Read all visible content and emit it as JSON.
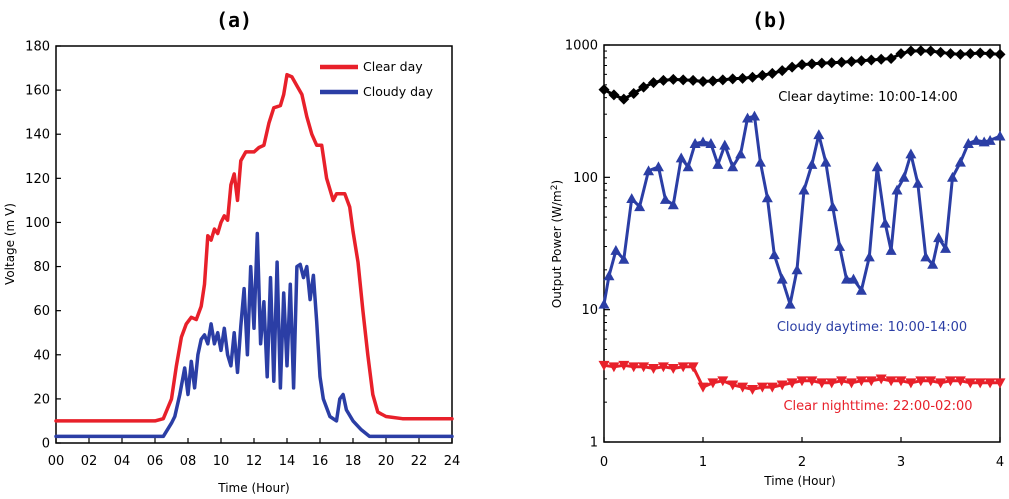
{
  "chart_data": [
    {
      "panel_label": "(a)",
      "type": "line",
      "xlabel": "Time (Hour)",
      "ylabel": "Voltage (m V)",
      "xlim": [
        0,
        24
      ],
      "ylim": [
        0,
        180
      ],
      "x_ticks": [
        0,
        2,
        4,
        6,
        8,
        10,
        12,
        14,
        16,
        18,
        20,
        22,
        24
      ],
      "x_tick_labels": [
        "00",
        "02",
        "04",
        "06",
        "08",
        "10",
        "12",
        "14",
        "16",
        "18",
        "20",
        "22",
        "24"
      ],
      "y_ticks": [
        0,
        20,
        40,
        60,
        80,
        100,
        120,
        140,
        160,
        180
      ],
      "y_tick_labels": [
        "0",
        "20",
        "40",
        "60",
        "80",
        "100",
        "120",
        "140",
        "160",
        "180"
      ],
      "legend_position": "top-right",
      "series": [
        {
          "name": "Clear day",
          "color": "#e8202a",
          "x": [
            0,
            1,
            2,
            3,
            4,
            5,
            6,
            6.5,
            7,
            7.3,
            7.6,
            7.9,
            8.2,
            8.5,
            8.8,
            9,
            9.2,
            9.4,
            9.6,
            9.8,
            10,
            10.2,
            10.4,
            10.6,
            10.8,
            11,
            11.2,
            11.5,
            12,
            12.3,
            12.6,
            12.9,
            13.2,
            13.6,
            13.8,
            14,
            14.3,
            14.6,
            14.9,
            15.2,
            15.5,
            15.8,
            16.1,
            16.4,
            16.8,
            17,
            17.5,
            17.8,
            18,
            18.3,
            18.6,
            18.9,
            19.2,
            19.5,
            20,
            21,
            22,
            23,
            24
          ],
          "y": [
            10,
            10,
            10,
            10,
            10,
            10,
            10,
            11,
            20,
            35,
            48,
            54,
            57,
            56,
            62,
            72,
            94,
            92,
            97,
            95,
            100,
            103,
            101,
            117,
            122,
            110,
            128,
            132,
            132,
            134,
            135,
            145,
            152,
            153,
            158,
            167,
            166,
            162,
            158,
            148,
            140,
            135,
            135,
            120,
            110,
            113,
            113,
            107,
            96,
            82,
            60,
            40,
            22,
            14,
            12,
            11,
            11,
            11,
            11
          ]
        },
        {
          "name": "Cloudy day",
          "color": "#2b3ea5",
          "x": [
            0,
            1,
            2,
            3,
            4,
            5,
            6,
            6.5,
            7,
            7.2,
            7.5,
            7.8,
            8,
            8.2,
            8.4,
            8.6,
            8.8,
            9,
            9.2,
            9.4,
            9.6,
            9.8,
            10,
            10.2,
            10.4,
            10.6,
            10.8,
            11,
            11.2,
            11.4,
            11.6,
            11.8,
            12,
            12.2,
            12.4,
            12.6,
            12.8,
            13,
            13.2,
            13.4,
            13.6,
            13.8,
            14,
            14.2,
            14.4,
            14.6,
            14.8,
            15,
            15.2,
            15.4,
            15.6,
            15.8,
            16,
            16.2,
            16.6,
            17,
            17.2,
            17.4,
            17.6,
            18,
            18.5,
            19,
            19.5,
            20,
            21,
            22,
            23,
            24
          ],
          "y": [
            3,
            3,
            3,
            3,
            3,
            3,
            3,
            3,
            9,
            12,
            22,
            34,
            22,
            37,
            25,
            40,
            47,
            49,
            45,
            54,
            45,
            50,
            42,
            52,
            40,
            35,
            50,
            32,
            53,
            70,
            40,
            80,
            52,
            95,
            45,
            64,
            30,
            75,
            28,
            82,
            25,
            68,
            35,
            72,
            25,
            80,
            81,
            75,
            80,
            65,
            76,
            55,
            30,
            20,
            12,
            10,
            20,
            22,
            15,
            10,
            6,
            3,
            3,
            3,
            3,
            3,
            3,
            3
          ]
        }
      ]
    },
    {
      "panel_label": "(b)",
      "type": "line",
      "xlabel": "Time (Hour)",
      "ylabel": "Output Power (W/m",
      "ylabel_superscript": "2",
      "ylabel_suffix": ")",
      "yscale": "log",
      "xlim": [
        0,
        4
      ],
      "ylim": [
        1,
        1000
      ],
      "x_ticks": [
        0,
        1,
        2,
        3,
        4
      ],
      "x_tick_labels": [
        "0",
        "1",
        "2",
        "3",
        "4"
      ],
      "y_ticks": [
        1,
        10,
        100,
        1000
      ],
      "y_tick_labels": [
        "1",
        "10",
        "100",
        "1000"
      ],
      "series": [
        {
          "name": "Clear daytime: 10:00-14:00",
          "color": "#000000",
          "marker": "diamond",
          "x": [
            0,
            0.1,
            0.2,
            0.3,
            0.4,
            0.5,
            0.6,
            0.7,
            0.8,
            0.9,
            1,
            1.1,
            1.2,
            1.3,
            1.4,
            1.5,
            1.6,
            1.7,
            1.8,
            1.9,
            2,
            2.1,
            2.2,
            2.3,
            2.4,
            2.5,
            2.6,
            2.7,
            2.8,
            2.9,
            3,
            3.1,
            3.2,
            3.3,
            3.4,
            3.5,
            3.6,
            3.7,
            3.8,
            3.9,
            4
          ],
          "y": [
            460,
            420,
            390,
            430,
            480,
            520,
            540,
            550,
            545,
            540,
            530,
            535,
            545,
            555,
            560,
            570,
            590,
            610,
            640,
            680,
            710,
            720,
            730,
            735,
            740,
            750,
            760,
            770,
            780,
            790,
            860,
            900,
            905,
            900,
            880,
            860,
            850,
            860,
            870,
            860,
            850
          ]
        },
        {
          "name": "Cloudy daytime: 10:00-14:00",
          "color": "#2b3ea5",
          "marker": "triangle-up",
          "x": [
            0,
            0.05,
            0.12,
            0.2,
            0.28,
            0.36,
            0.45,
            0.55,
            0.62,
            0.7,
            0.78,
            0.85,
            0.92,
            1,
            1.08,
            1.15,
            1.22,
            1.3,
            1.38,
            1.45,
            1.52,
            1.58,
            1.65,
            1.72,
            1.8,
            1.88,
            1.95,
            2.02,
            2.1,
            2.17,
            2.24,
            2.31,
            2.38,
            2.45,
            2.52,
            2.6,
            2.68,
            2.76,
            2.84,
            2.9,
            2.96,
            3.03,
            3.1,
            3.17,
            3.25,
            3.32,
            3.38,
            3.45,
            3.52,
            3.6,
            3.68,
            3.76,
            3.84,
            3.9,
            4
          ],
          "y": [
            11,
            18,
            28,
            24,
            69,
            60,
            112,
            120,
            68,
            62,
            140,
            120,
            180,
            185,
            180,
            125,
            175,
            120,
            150,
            280,
            290,
            130,
            70,
            26,
            17,
            11,
            20,
            80,
            125,
            210,
            130,
            60,
            30,
            17,
            17,
            14,
            25,
            120,
            45,
            28,
            80,
            100,
            150,
            90,
            25,
            22,
            35,
            29,
            100,
            130,
            180,
            190,
            185,
            190,
            205
          ]
        },
        {
          "name": "Clear nighttime: 22:00-02:00",
          "color": "#e8202a",
          "marker": "triangle-down",
          "x": [
            0,
            0.1,
            0.2,
            0.3,
            0.4,
            0.5,
            0.6,
            0.7,
            0.8,
            0.9,
            1,
            1.1,
            1.2,
            1.3,
            1.4,
            1.5,
            1.6,
            1.7,
            1.8,
            1.9,
            2,
            2.1,
            2.2,
            2.3,
            2.4,
            2.5,
            2.6,
            2.7,
            2.8,
            2.9,
            3,
            3.1,
            3.2,
            3.3,
            3.4,
            3.5,
            3.6,
            3.7,
            3.8,
            3.9,
            4
          ],
          "y": [
            3.8,
            3.7,
            3.8,
            3.7,
            3.7,
            3.6,
            3.7,
            3.6,
            3.7,
            3.7,
            2.6,
            2.8,
            2.9,
            2.7,
            2.6,
            2.5,
            2.6,
            2.6,
            2.7,
            2.8,
            2.9,
            2.9,
            2.8,
            2.8,
            2.9,
            2.8,
            2.9,
            2.9,
            3,
            2.9,
            2.9,
            2.8,
            2.9,
            2.9,
            2.8,
            2.9,
            2.9,
            2.8,
            2.8,
            2.8,
            2.8
          ]
        }
      ]
    }
  ],
  "colors": {
    "red": "#e8202a",
    "blue": "#2b3ea5",
    "black": "#000000"
  }
}
